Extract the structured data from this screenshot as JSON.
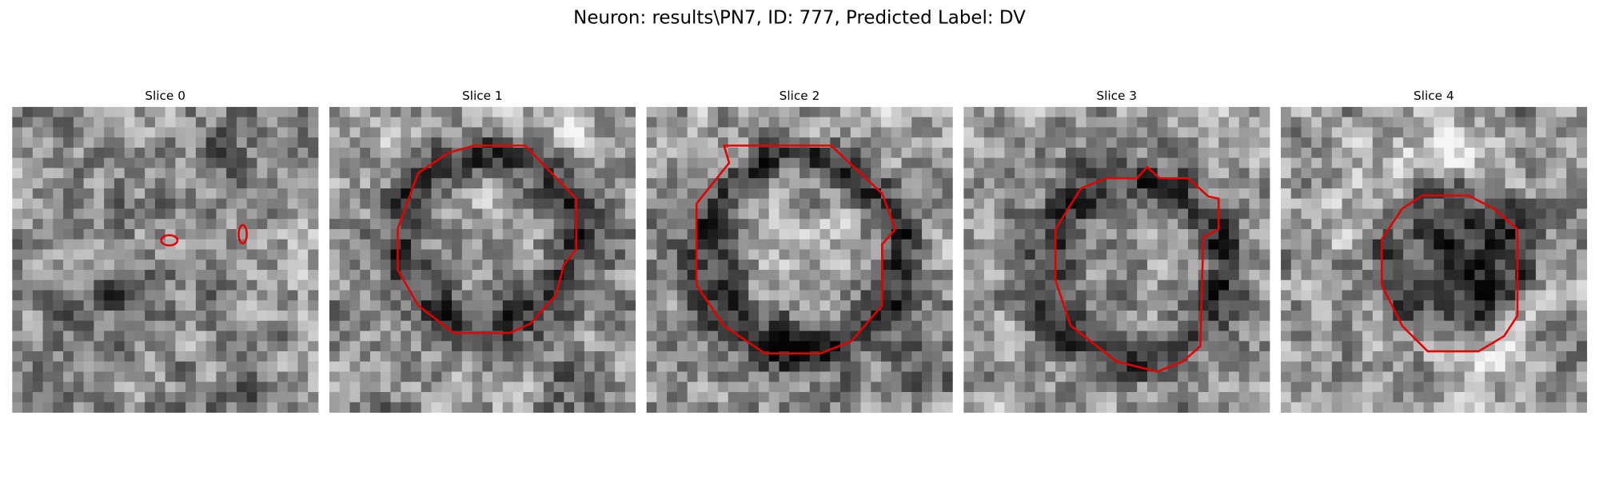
{
  "figure": {
    "title": "Neuron: results\\PN7, ID: 777, Predicted Label: DV",
    "panels": [
      {
        "title": "Slice 0"
      },
      {
        "title": "Slice 1"
      },
      {
        "title": "Slice 2"
      },
      {
        "title": "Slice 3"
      },
      {
        "title": "Slice 4"
      }
    ]
  }
}
